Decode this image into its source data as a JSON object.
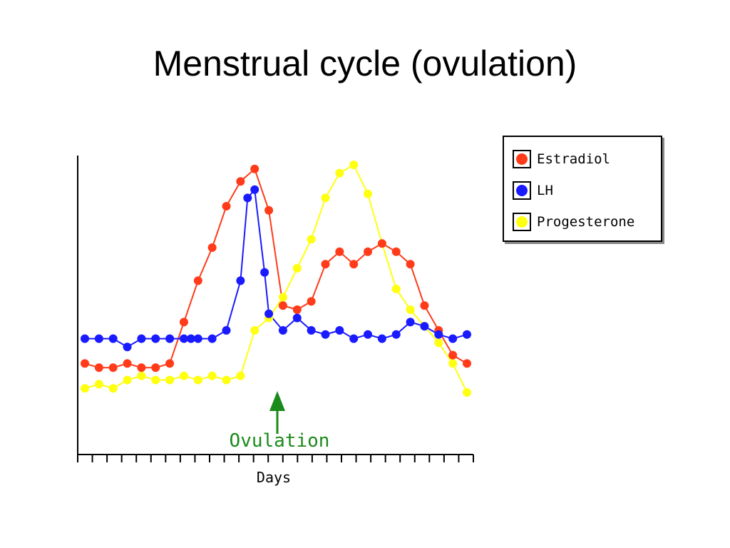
{
  "slide": {
    "title": "Menstrual cycle (ovulation)"
  },
  "colors": {
    "estradiol": "#ff3b1a",
    "lh": "#1a1aff",
    "progesterone": "#ffff10",
    "ovulation": "#1a8a1a"
  },
  "chart_data": {
    "type": "line",
    "xlabel": "Days",
    "ylabel": "",
    "title": "",
    "x_ticks": 28,
    "grid": false,
    "legend_position": "top-right",
    "annotation": {
      "text": "Ovulation",
      "x": 14,
      "arrow": "up"
    },
    "series": [
      {
        "name": "Estradiol",
        "x": [
          1,
          2,
          3,
          4,
          5,
          6,
          7,
          8,
          9,
          10,
          11,
          12,
          13,
          14,
          15,
          16,
          17,
          18,
          19,
          20,
          21,
          22,
          23,
          24,
          25,
          26,
          27,
          28
        ],
        "values": [
          22,
          21,
          21,
          22,
          21,
          21,
          22,
          32,
          42,
          50,
          60,
          66,
          69,
          59,
          36,
          35,
          37,
          46,
          49,
          46,
          49,
          51,
          49,
          46,
          36,
          30,
          24,
          22
        ]
      },
      {
        "name": "LH",
        "x": [
          1,
          2,
          3,
          4,
          5,
          6,
          7,
          8,
          8.5,
          9,
          10,
          11,
          12,
          12.5,
          13,
          13.7,
          14,
          15,
          16,
          17,
          18,
          19,
          20,
          21,
          22,
          23,
          24,
          25,
          26,
          27,
          28
        ],
        "values": [
          28,
          28,
          28,
          26,
          28,
          28,
          28,
          28,
          28,
          28,
          28,
          30,
          42,
          62,
          64,
          44,
          34,
          30,
          33,
          30,
          29,
          30,
          28,
          29,
          28,
          29,
          32,
          31,
          29,
          28,
          29
        ],
        "source_index_note": ""
      },
      {
        "name": "Progesterone",
        "x": [
          1,
          2,
          3,
          4,
          5,
          6,
          7,
          8,
          9,
          10,
          11,
          12,
          13,
          14,
          15,
          16,
          17,
          18,
          19,
          20,
          21,
          22,
          23,
          24,
          25,
          26,
          27,
          28
        ],
        "values": [
          16,
          17,
          16,
          18,
          19,
          18,
          18,
          19,
          18,
          19,
          18,
          19,
          30,
          33,
          38,
          45,
          52,
          62,
          68,
          70,
          63,
          51,
          40,
          35,
          31,
          27,
          22,
          15
        ]
      }
    ]
  }
}
